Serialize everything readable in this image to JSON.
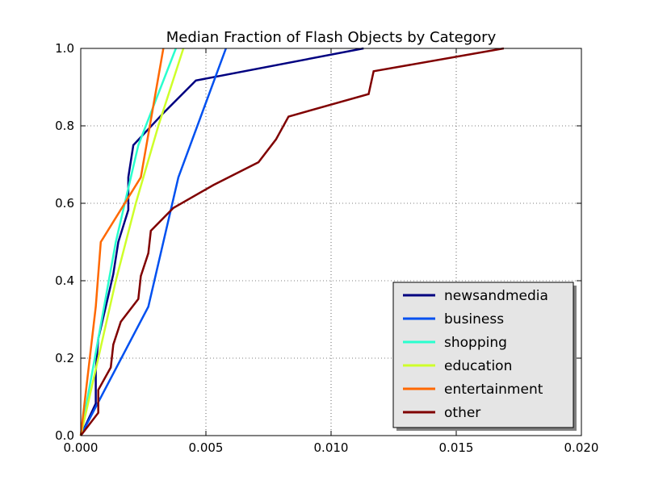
{
  "chart_data": {
    "type": "line",
    "title": "Median Fraction of Flash Objects by Category",
    "xlabel": "",
    "ylabel": "",
    "xlim": [
      0.0,
      0.02
    ],
    "ylim": [
      0.0,
      1.0
    ],
    "x_ticks": [
      "0.000",
      "0.005",
      "0.010",
      "0.015",
      "0.020"
    ],
    "y_ticks": [
      "0.0",
      "0.2",
      "0.4",
      "0.6",
      "0.8",
      "1.0"
    ],
    "x_tick_values": [
      0.0,
      0.005,
      0.01,
      0.015,
      0.02
    ],
    "y_tick_values": [
      0.0,
      0.2,
      0.4,
      0.6,
      0.8,
      1.0
    ],
    "grid": true,
    "legend_position": "lower-right",
    "series": [
      {
        "name": "newsandmedia",
        "color": "#000080",
        "points": [
          [
            0.0,
            0.0
          ],
          [
            0.0006,
            0.083
          ],
          [
            0.0006,
            0.167
          ],
          [
            0.0007,
            0.25
          ],
          [
            0.001,
            0.333
          ],
          [
            0.0013,
            0.417
          ],
          [
            0.0015,
            0.5
          ],
          [
            0.0019,
            0.583
          ],
          [
            0.0019,
            0.667
          ],
          [
            0.0021,
            0.75
          ],
          [
            0.0033,
            0.833
          ],
          [
            0.0046,
            0.917
          ],
          [
            0.0113,
            1.0
          ]
        ]
      },
      {
        "name": "business",
        "color": "#0050f0",
        "points": [
          [
            0.0,
            0.0
          ],
          [
            0.0027,
            0.333
          ],
          [
            0.0039,
            0.667
          ],
          [
            0.0058,
            1.0
          ]
        ]
      },
      {
        "name": "shopping",
        "color": "#29ffce",
        "points": [
          [
            0.0,
            0.0
          ],
          [
            0.0007,
            0.25
          ],
          [
            0.0014,
            0.5
          ],
          [
            0.0023,
            0.75
          ],
          [
            0.0038,
            1.0
          ]
        ]
      },
      {
        "name": "education",
        "color": "#ceff29",
        "points": [
          [
            0.0,
            0.0
          ],
          [
            0.0007,
            0.2
          ],
          [
            0.0014,
            0.4
          ],
          [
            0.0022,
            0.6
          ],
          [
            0.0031,
            0.8
          ],
          [
            0.0041,
            1.0
          ]
        ]
      },
      {
        "name": "entertainment",
        "color": "#ff6800",
        "points": [
          [
            0.0,
            0.0
          ],
          [
            0.0006,
            0.333
          ],
          [
            0.0008,
            0.5
          ],
          [
            0.0024,
            0.667
          ],
          [
            0.0033,
            1.0
          ]
        ]
      },
      {
        "name": "other",
        "color": "#800000",
        "points": [
          [
            0.0,
            0.0
          ],
          [
            0.0007,
            0.059
          ],
          [
            0.0007,
            0.118
          ],
          [
            0.0012,
            0.176
          ],
          [
            0.0013,
            0.235
          ],
          [
            0.0016,
            0.294
          ],
          [
            0.0023,
            0.353
          ],
          [
            0.0024,
            0.412
          ],
          [
            0.0027,
            0.471
          ],
          [
            0.0028,
            0.529
          ],
          [
            0.0037,
            0.588
          ],
          [
            0.0053,
            0.647
          ],
          [
            0.0071,
            0.706
          ],
          [
            0.0078,
            0.765
          ],
          [
            0.0083,
            0.824
          ],
          [
            0.0115,
            0.882
          ],
          [
            0.0117,
            0.941
          ],
          [
            0.0169,
            1.0
          ]
        ]
      }
    ]
  }
}
